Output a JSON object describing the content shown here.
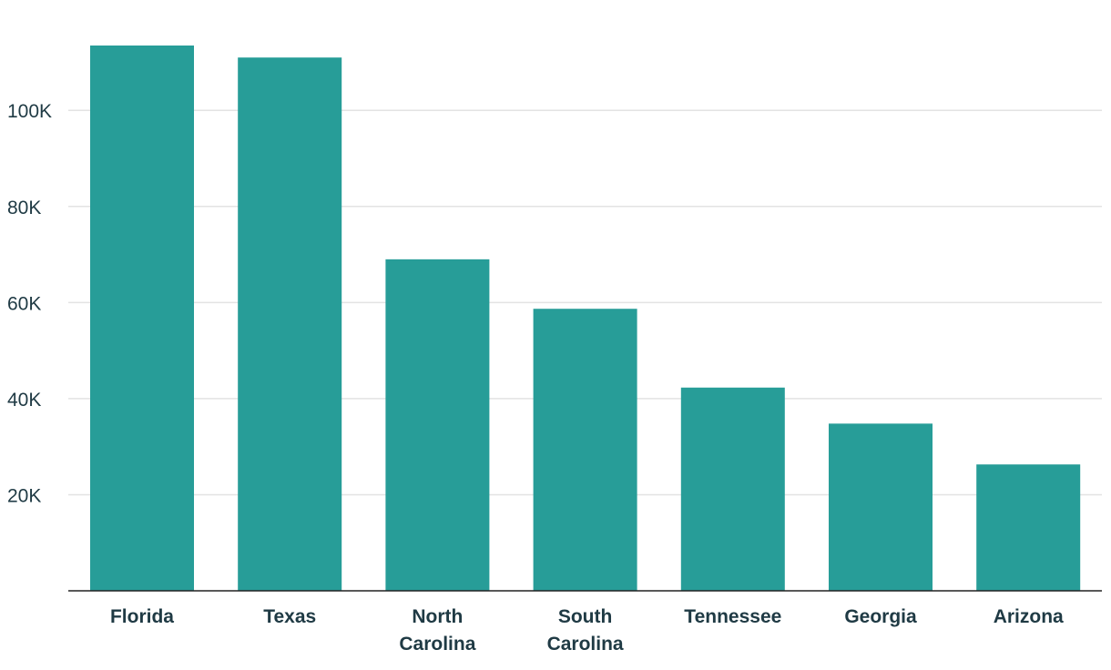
{
  "chart_data": {
    "type": "bar",
    "title": "",
    "xlabel": "",
    "ylabel": "",
    "categories": [
      [
        "Florida"
      ],
      [
        "Texas"
      ],
      [
        "North",
        "Carolina"
      ],
      [
        "South",
        "Carolina"
      ],
      [
        "Tennessee"
      ],
      [
        "Georgia"
      ],
      [
        "Arizona"
      ]
    ],
    "values": [
      113500,
      111000,
      69000,
      58700,
      42300,
      34800,
      26300
    ],
    "ylim": [
      0,
      113500
    ],
    "yticks": [
      20000,
      40000,
      60000,
      80000,
      100000
    ],
    "ytick_labels": [
      "20K",
      "40K",
      "60K",
      "80K",
      "100K"
    ],
    "grid": true,
    "legend": "none",
    "colors": {
      "bar": "#279d98"
    }
  }
}
